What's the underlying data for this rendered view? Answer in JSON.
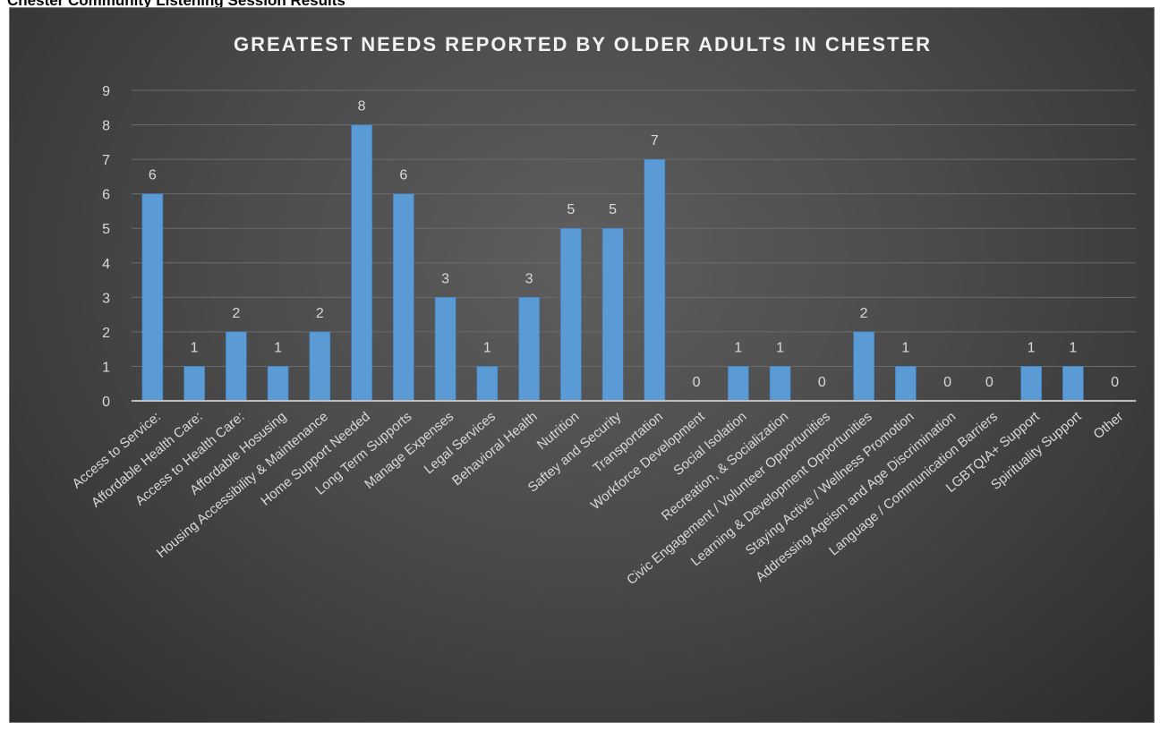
{
  "caption": "Chester Community Listening Session Results",
  "colors": {
    "bar": "#5b9bd5",
    "bar_edge": "#3f7fbf",
    "grid": "#6b6b6b",
    "axis": "#bfbfbf"
  },
  "chart_data": {
    "type": "bar",
    "title": "GREATEST NEEDS REPORTED BY OLDER ADULTS IN CHESTER",
    "xlabel": "",
    "ylabel": "",
    "ylim": [
      0,
      9
    ],
    "yticks": [
      0,
      1,
      2,
      3,
      4,
      5,
      6,
      7,
      8,
      9
    ],
    "grid": true,
    "legend": "none",
    "data_labels": true,
    "categories": [
      "Access to Service:",
      "Affordable Health Care:",
      "Access to Health Care:",
      "Affordable Hosusing",
      "Housing Accessibility & Maintenance",
      "Home Support Needed",
      "Long Term Supports",
      "Manage Expenses",
      "Legal Services",
      "Behavioral Health",
      "Nutrition",
      "Saftey and Security",
      "Transportation",
      "Workforce Development",
      "Social Isolation",
      "Recreation, & Socialization",
      "Civic Engagement / Volunteer Opportunities",
      "Learning & Development Opportunities",
      "Staying Active / Wellness Promotion",
      "Addressing Ageism and Age Discrimination",
      "Language / Communication Barriers",
      "LGBTQIA+ Support",
      "Spirituality Support",
      "Other"
    ],
    "values": [
      6,
      1,
      2,
      1,
      2,
      8,
      6,
      3,
      1,
      3,
      5,
      5,
      7,
      0,
      1,
      1,
      0,
      2,
      1,
      0,
      0,
      1,
      1,
      0
    ]
  }
}
